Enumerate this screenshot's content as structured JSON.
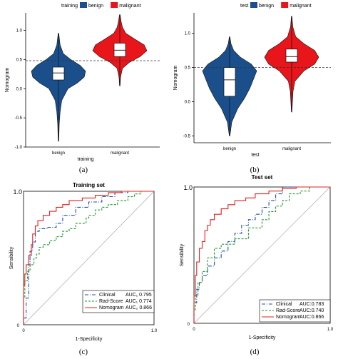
{
  "panel_labels": [
    "(a)",
    "(b)",
    "(c)",
    "(d)"
  ],
  "colors": {
    "benign": "#1a4f8c",
    "malignant": "#e8151b",
    "clinical": "#1f4fa8",
    "radscore": "#1f9a2c",
    "nomogram": "#e0201f",
    "diagonal": "#9e9e9e"
  },
  "chart_data": [
    {
      "type": "violin",
      "legend_title": "training",
      "legend": [
        "benign",
        "malignant"
      ],
      "xlabel": "training",
      "ylabel": "Nomogram",
      "categories": [
        "benign",
        "malignant"
      ],
      "ylim": [
        -1.0,
        1.3
      ],
      "yticks": [
        "-1.0",
        "-0.5",
        "0.0",
        "0.5",
        "1.0"
      ],
      "ytick_values": [
        -1.0,
        -0.5,
        0.0,
        0.5,
        1.0
      ],
      "cutoff": 0.48,
      "violins": [
        {
          "name": "benign",
          "min": -0.9,
          "max": 0.95,
          "q1": 0.15,
          "median": 0.27,
          "q3": 0.37,
          "density": [
            [
              -0.9,
              0.01
            ],
            [
              -0.6,
              0.03
            ],
            [
              -0.4,
              0.06
            ],
            [
              -0.2,
              0.12
            ],
            [
              0.0,
              0.35
            ],
            [
              0.1,
              0.7
            ],
            [
              0.2,
              0.95
            ],
            [
              0.3,
              1.0
            ],
            [
              0.4,
              0.8
            ],
            [
              0.5,
              0.45
            ],
            [
              0.6,
              0.18
            ],
            [
              0.75,
              0.06
            ],
            [
              0.95,
              0.01
            ]
          ]
        },
        {
          "name": "malignant",
          "min": 0.05,
          "max": 1.27,
          "q1": 0.55,
          "median": 0.66,
          "q3": 0.78,
          "density": [
            [
              0.05,
              0.01
            ],
            [
              0.2,
              0.03
            ],
            [
              0.35,
              0.1
            ],
            [
              0.45,
              0.35
            ],
            [
              0.55,
              0.75
            ],
            [
              0.65,
              1.0
            ],
            [
              0.75,
              0.9
            ],
            [
              0.85,
              0.55
            ],
            [
              0.95,
              0.22
            ],
            [
              1.05,
              0.1
            ],
            [
              1.15,
              0.05
            ],
            [
              1.27,
              0.01
            ]
          ]
        }
      ]
    },
    {
      "type": "violin",
      "legend_title": "test",
      "legend": [
        "benign",
        "malignant"
      ],
      "xlabel": "test",
      "ylabel": "Nomogram",
      "categories": [
        "benign",
        "malignant"
      ],
      "ylim": [
        -0.6,
        1.3
      ],
      "yticks": [
        "-0.5",
        "0.0",
        "0.5",
        "1.0"
      ],
      "ytick_values": [
        -0.5,
        0.0,
        0.5,
        1.0
      ],
      "cutoff": 0.5,
      "violins": [
        {
          "name": "benign",
          "min": -0.5,
          "max": 0.95,
          "q1": 0.08,
          "median": 0.32,
          "q3": 0.5,
          "density": [
            [
              -0.5,
              0.01
            ],
            [
              -0.3,
              0.08
            ],
            [
              -0.1,
              0.3
            ],
            [
              0.05,
              0.55
            ],
            [
              0.2,
              0.75
            ],
            [
              0.35,
              0.9
            ],
            [
              0.45,
              1.0
            ],
            [
              0.55,
              0.8
            ],
            [
              0.65,
              0.4
            ],
            [
              0.75,
              0.15
            ],
            [
              0.85,
              0.05
            ],
            [
              0.95,
              0.01
            ]
          ]
        },
        {
          "name": "malignant",
          "min": -0.15,
          "max": 1.25,
          "q1": 0.58,
          "median": 0.66,
          "q3": 0.77,
          "density": [
            [
              -0.15,
              0.01
            ],
            [
              0.0,
              0.03
            ],
            [
              0.15,
              0.05
            ],
            [
              0.3,
              0.12
            ],
            [
              0.45,
              0.45
            ],
            [
              0.55,
              0.85
            ],
            [
              0.65,
              1.0
            ],
            [
              0.75,
              0.85
            ],
            [
              0.85,
              0.45
            ],
            [
              0.95,
              0.15
            ],
            [
              1.1,
              0.04
            ],
            [
              1.25,
              0.01
            ]
          ]
        }
      ]
    },
    {
      "type": "line",
      "title": "Training set",
      "xlabel": "1-Specificity",
      "ylabel": "Sensibility",
      "xlim": [
        0,
        1
      ],
      "ylim": [
        0,
        1
      ],
      "xticks": [
        "0",
        "1.0"
      ],
      "yticks": [
        "0",
        "1.0"
      ],
      "legend_position": "bottom-right",
      "series": [
        {
          "name": "Clinical",
          "auc_label": "AUC₁ 0.795",
          "style": "dashdot",
          "points": [
            [
              0,
              0
            ],
            [
              0.02,
              0.05
            ],
            [
              0.04,
              0.2
            ],
            [
              0.05,
              0.45
            ],
            [
              0.07,
              0.55
            ],
            [
              0.09,
              0.62
            ],
            [
              0.12,
              0.7
            ],
            [
              0.18,
              0.72
            ],
            [
              0.25,
              0.73
            ],
            [
              0.3,
              0.76
            ],
            [
              0.4,
              0.82
            ],
            [
              0.5,
              0.88
            ],
            [
              0.6,
              0.92
            ],
            [
              0.7,
              0.96
            ],
            [
              0.8,
              0.99
            ],
            [
              0.9,
              1.0
            ],
            [
              1,
              1
            ]
          ]
        },
        {
          "name": "Rad-Score",
          "auc_label": "AUC₁ 0.774",
          "style": "dashed",
          "points": [
            [
              0,
              0
            ],
            [
              0.01,
              0.2
            ],
            [
              0.03,
              0.33
            ],
            [
              0.05,
              0.4
            ],
            [
              0.08,
              0.45
            ],
            [
              0.1,
              0.5
            ],
            [
              0.12,
              0.53
            ],
            [
              0.15,
              0.58
            ],
            [
              0.2,
              0.6
            ],
            [
              0.25,
              0.63
            ],
            [
              0.3,
              0.66
            ],
            [
              0.35,
              0.7
            ],
            [
              0.4,
              0.72
            ],
            [
              0.48,
              0.76
            ],
            [
              0.5,
              0.8
            ],
            [
              0.55,
              0.82
            ],
            [
              0.6,
              0.86
            ],
            [
              0.65,
              0.88
            ],
            [
              0.72,
              0.9
            ],
            [
              0.8,
              0.93
            ],
            [
              0.85,
              0.96
            ],
            [
              0.9,
              0.98
            ],
            [
              1,
              1
            ]
          ]
        },
        {
          "name": "Nomogram",
          "auc_label": "AUC₂ 0.866",
          "style": "solid",
          "points": [
            [
              0,
              0
            ],
            [
              0.01,
              0.3
            ],
            [
              0.02,
              0.38
            ],
            [
              0.04,
              0.45
            ],
            [
              0.06,
              0.52
            ],
            [
              0.07,
              0.6
            ],
            [
              0.09,
              0.68
            ],
            [
              0.11,
              0.74
            ],
            [
              0.15,
              0.78
            ],
            [
              0.2,
              0.82
            ],
            [
              0.25,
              0.85
            ],
            [
              0.3,
              0.88
            ],
            [
              0.35,
              0.9
            ],
            [
              0.45,
              0.93
            ],
            [
              0.55,
              0.95
            ],
            [
              0.65,
              0.97
            ],
            [
              0.75,
              0.99
            ],
            [
              0.85,
              1.0
            ],
            [
              1,
              1
            ]
          ]
        }
      ]
    },
    {
      "type": "line",
      "title": "Test set",
      "xlabel": "1-Specificity",
      "ylabel": "Sensibility",
      "xlim": [
        0,
        1
      ],
      "ylim": [
        0,
        1
      ],
      "xticks": [
        "0",
        "1.0"
      ],
      "yticks": [
        "0",
        "1.0"
      ],
      "legend_position": "bottom-right",
      "series": [
        {
          "name": "Clinical",
          "auc_label": "AUC:0.783",
          "style": "dashdot",
          "points": [
            [
              0,
              0
            ],
            [
              0.02,
              0.15
            ],
            [
              0.04,
              0.25
            ],
            [
              0.06,
              0.3
            ],
            [
              0.1,
              0.35
            ],
            [
              0.15,
              0.42
            ],
            [
              0.2,
              0.48
            ],
            [
              0.25,
              0.53
            ],
            [
              0.3,
              0.6
            ],
            [
              0.35,
              0.66
            ],
            [
              0.4,
              0.72
            ],
            [
              0.45,
              0.76
            ],
            [
              0.5,
              0.8
            ],
            [
              0.55,
              0.85
            ],
            [
              0.6,
              0.9
            ],
            [
              0.65,
              0.95
            ],
            [
              0.7,
              1.0
            ],
            [
              1,
              1
            ]
          ]
        },
        {
          "name": "Rad-Score",
          "auc_label": "AUC:0.740",
          "style": "dashed",
          "points": [
            [
              0,
              0
            ],
            [
              0.01,
              0.1
            ],
            [
              0.03,
              0.2
            ],
            [
              0.06,
              0.3
            ],
            [
              0.1,
              0.38
            ],
            [
              0.15,
              0.48
            ],
            [
              0.2,
              0.55
            ],
            [
              0.3,
              0.58
            ],
            [
              0.4,
              0.62
            ],
            [
              0.5,
              0.7
            ],
            [
              0.55,
              0.76
            ],
            [
              0.6,
              0.82
            ],
            [
              0.65,
              0.86
            ],
            [
              0.7,
              0.9
            ],
            [
              0.78,
              0.95
            ],
            [
              0.85,
              0.97
            ],
            [
              1,
              1
            ]
          ]
        },
        {
          "name": "Nomogram",
          "auc_label": "AUC:0.866",
          "style": "solid",
          "points": [
            [
              0,
              0
            ],
            [
              0.01,
              0.2
            ],
            [
              0.02,
              0.35
            ],
            [
              0.04,
              0.45
            ],
            [
              0.06,
              0.55
            ],
            [
              0.08,
              0.6
            ],
            [
              0.1,
              0.68
            ],
            [
              0.12,
              0.72
            ],
            [
              0.15,
              0.76
            ],
            [
              0.2,
              0.8
            ],
            [
              0.25,
              0.84
            ],
            [
              0.3,
              0.87
            ],
            [
              0.38,
              0.9
            ],
            [
              0.45,
              0.92
            ],
            [
              0.55,
              0.95
            ],
            [
              0.65,
              0.97
            ],
            [
              0.75,
              0.99
            ],
            [
              0.85,
              1.0
            ],
            [
              1,
              1
            ]
          ]
        }
      ]
    }
  ]
}
